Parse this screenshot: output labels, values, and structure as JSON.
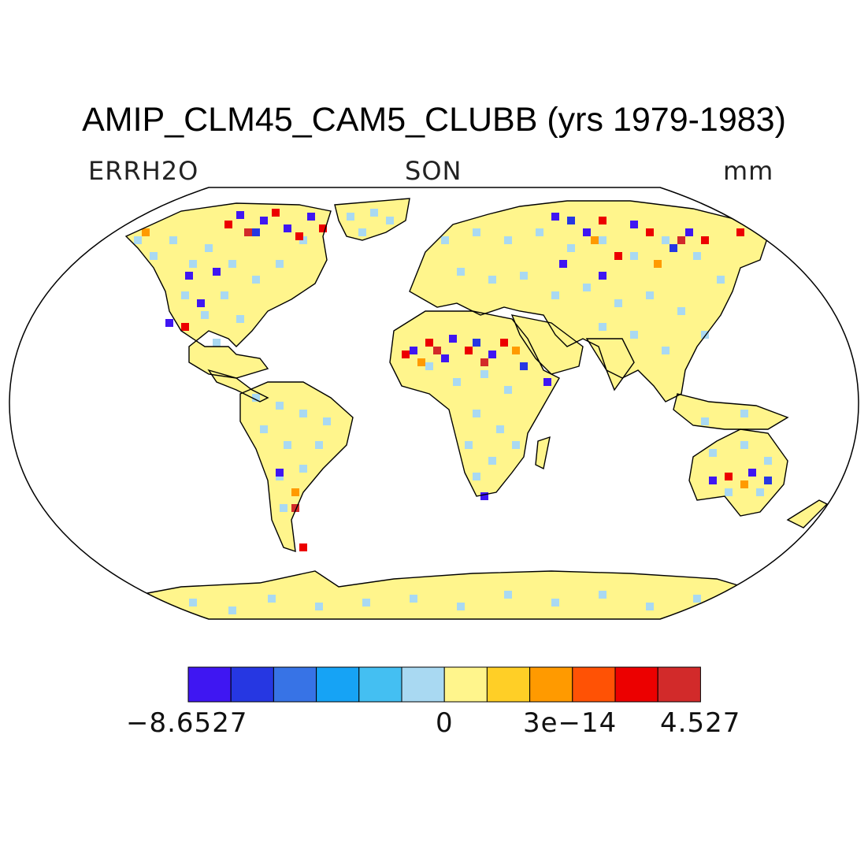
{
  "title": "AMIP_CLM45_CAM5_CLUBB (yrs 1979-1983)",
  "variable": "ERRH2O",
  "season": "SON",
  "units": "mm",
  "colorbar": {
    "colors": [
      "#3f16f2",
      "#2637e2",
      "#3773e6",
      "#16a3f5",
      "#44bff2",
      "#a9d9f2",
      "#fff58c",
      "#ffcf26",
      "#ff9a00",
      "#ff5205",
      "#ec0000",
      "#d22a2a"
    ],
    "labels": [
      "−8.6527",
      "0",
      "3e−14",
      "4.527"
    ]
  },
  "legend_colors": {
    "ocean": "#ffffff",
    "coast": "#000000",
    "dominant_land_values": [
      "#a9d9f2",
      "#fff58c"
    ]
  }
}
